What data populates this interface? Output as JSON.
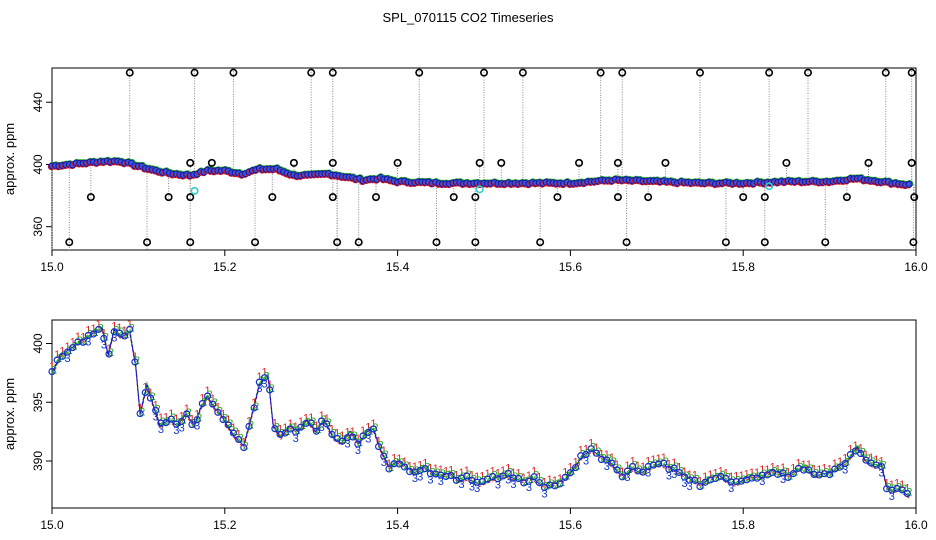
{
  "title": "SPL_070115  CO2 Timeseries",
  "chart_data": [
    {
      "type": "scatter",
      "ylabel": "approx. ppm",
      "xlim": [
        15.0,
        16.0
      ],
      "ylim": [
        345,
        462
      ],
      "xticks": [
        "15.0",
        "15.2",
        "15.4",
        "15.6",
        "15.8",
        "16.0"
      ],
      "xtick_values": [
        15.0,
        15.2,
        15.4,
        15.6,
        15.8,
        16.0
      ],
      "yticks": [
        "360",
        "400",
        "440"
      ],
      "ytick_values": [
        360,
        400,
        440
      ],
      "baseline": [
        [
          15.0,
          399
        ],
        [
          15.02,
          400
        ],
        [
          15.04,
          401
        ],
        [
          15.06,
          402
        ],
        [
          15.08,
          402
        ],
        [
          15.1,
          399
        ],
        [
          15.12,
          396
        ],
        [
          15.14,
          394
        ],
        [
          15.16,
          393
        ],
        [
          15.18,
          396
        ],
        [
          15.2,
          396
        ],
        [
          15.22,
          394
        ],
        [
          15.24,
          397
        ],
        [
          15.26,
          397
        ],
        [
          15.28,
          393
        ],
        [
          15.3,
          393
        ],
        [
          15.32,
          394
        ],
        [
          15.34,
          392
        ],
        [
          15.36,
          390
        ],
        [
          15.38,
          391
        ],
        [
          15.4,
          389
        ],
        [
          15.45,
          388
        ],
        [
          15.5,
          388
        ],
        [
          15.55,
          388
        ],
        [
          15.6,
          388
        ],
        [
          15.65,
          390
        ],
        [
          15.7,
          389
        ],
        [
          15.75,
          388
        ],
        [
          15.8,
          388
        ],
        [
          15.85,
          389
        ],
        [
          15.9,
          389
        ],
        [
          15.93,
          391
        ],
        [
          15.96,
          389
        ],
        [
          15.99,
          387
        ]
      ],
      "outliers_high": [
        15.09,
        15.165,
        15.21,
        15.3,
        15.325,
        15.425,
        15.5,
        15.545,
        15.635,
        15.66,
        15.75,
        15.83,
        15.875,
        15.965,
        15.995
      ],
      "outliers_low": [
        15.02,
        15.11,
        15.16,
        15.235,
        15.33,
        15.355,
        15.445,
        15.49,
        15.565,
        15.665,
        15.78,
        15.825,
        15.895,
        15.997
      ],
      "outliers_mid_high": [
        15.16,
        15.185,
        15.28,
        15.325,
        15.4,
        15.495,
        15.52,
        15.61,
        15.655,
        15.71,
        15.85,
        15.945,
        15.995
      ],
      "outliers_mid_low": [
        15.045,
        15.135,
        15.16,
        15.255,
        15.325,
        15.375,
        15.465,
        15.49,
        15.585,
        15.655,
        15.69,
        15.8,
        15.825,
        15.92,
        15.998
      ],
      "highlight_points": [
        [
          15.165,
          383
        ],
        [
          15.495,
          384
        ],
        [
          15.83,
          386
        ]
      ]
    },
    {
      "type": "line",
      "ylabel": "approx. ppm",
      "xlim": [
        15.0,
        16.0
      ],
      "ylim": [
        386,
        402
      ],
      "xticks": [
        "15.0",
        "15.2",
        "15.4",
        "15.6",
        "15.8",
        "16.0"
      ],
      "xtick_values": [
        15.0,
        15.2,
        15.4,
        15.6,
        15.8,
        16.0
      ],
      "yticks": [
        "390",
        "395",
        "400"
      ],
      "ytick_values": [
        390,
        395,
        400
      ],
      "series": [
        {
          "values": [
            [
              15.0,
              397.5
            ],
            [
              15.01,
              399.0
            ],
            [
              15.02,
              399.5
            ],
            [
              15.03,
              400.0
            ],
            [
              15.04,
              400.5
            ],
            [
              15.05,
              401.0
            ],
            [
              15.058,
              401.3
            ],
            [
              15.065,
              399.0
            ],
            [
              15.072,
              401.2
            ],
            [
              15.08,
              400.5
            ],
            [
              15.09,
              401.0
            ],
            [
              15.097,
              398.0
            ],
            [
              15.102,
              394.0
            ],
            [
              15.11,
              396.5
            ],
            [
              15.118,
              394.5
            ],
            [
              15.125,
              393.0
            ],
            [
              15.135,
              393.5
            ],
            [
              15.145,
              393.0
            ],
            [
              15.155,
              394.0
            ],
            [
              15.165,
              393.0
            ],
            [
              15.172,
              394.5
            ],
            [
              15.18,
              395.5
            ],
            [
              15.188,
              394.5
            ],
            [
              15.195,
              394.0
            ],
            [
              15.203,
              393.0
            ],
            [
              15.212,
              392.0
            ],
            [
              15.222,
              391.3
            ],
            [
              15.23,
              393.5
            ],
            [
              15.24,
              396.5
            ],
            [
              15.25,
              397.3
            ],
            [
              15.256,
              393.0
            ],
            [
              15.265,
              392.0
            ],
            [
              15.275,
              393.0
            ],
            [
              15.285,
              392.5
            ],
            [
              15.295,
              393.5
            ],
            [
              15.305,
              392.5
            ],
            [
              15.315,
              393.5
            ],
            [
              15.325,
              392.0
            ],
            [
              15.335,
              391.5
            ],
            [
              15.345,
              392.5
            ],
            [
              15.355,
              391.5
            ],
            [
              15.365,
              392.5
            ],
            [
              15.372,
              392.7
            ],
            [
              15.38,
              391.0
            ],
            [
              15.39,
              389.5
            ],
            [
              15.4,
              390.0
            ],
            [
              15.41,
              389.5
            ],
            [
              15.42,
              389.0
            ],
            [
              15.43,
              389.5
            ],
            [
              15.44,
              389.0
            ],
            [
              15.45,
              388.7
            ],
            [
              15.46,
              389.0
            ],
            [
              15.47,
              388.3
            ],
            [
              15.48,
              388.5
            ],
            [
              15.495,
              388.0
            ],
            [
              15.505,
              388.3
            ],
            [
              15.515,
              388.6
            ],
            [
              15.525,
              388.8
            ],
            [
              15.535,
              388.5
            ],
            [
              15.545,
              388.3
            ],
            [
              15.555,
              388.6
            ],
            [
              15.565,
              388.0
            ],
            [
              15.575,
              387.9
            ],
            [
              15.585,
              388.2
            ],
            [
              15.595,
              388.5
            ],
            [
              15.605,
              389.5
            ],
            [
              15.615,
              390.5
            ],
            [
              15.625,
              390.9
            ],
            [
              15.635,
              390.4
            ],
            [
              15.645,
              390.0
            ],
            [
              15.655,
              389.0
            ],
            [
              15.662,
              388.7
            ],
            [
              15.672,
              389.3
            ],
            [
              15.682,
              389.0
            ],
            [
              15.692,
              389.4
            ],
            [
              15.702,
              389.7
            ],
            [
              15.712,
              389.5
            ],
            [
              15.722,
              389.2
            ],
            [
              15.732,
              388.8
            ],
            [
              15.742,
              388.3
            ],
            [
              15.752,
              388.0
            ],
            [
              15.762,
              388.6
            ],
            [
              15.772,
              388.8
            ],
            [
              15.782,
              388.2
            ],
            [
              15.792,
              388.0
            ],
            [
              15.802,
              388.5
            ],
            [
              15.812,
              388.8
            ],
            [
              15.822,
              388.6
            ],
            [
              15.832,
              389.2
            ],
            [
              15.842,
              389.0
            ],
            [
              15.852,
              388.8
            ],
            [
              15.862,
              389.2
            ],
            [
              15.872,
              389.5
            ],
            [
              15.882,
              388.7
            ],
            [
              15.892,
              388.9
            ],
            [
              15.902,
              389.0
            ],
            [
              15.912,
              389.6
            ],
            [
              15.922,
              390.1
            ],
            [
              15.932,
              391.2
            ],
            [
              15.942,
              390.0
            ],
            [
              15.952,
              389.5
            ],
            [
              15.96,
              389.7
            ],
            [
              15.966,
              387.8
            ],
            [
              15.972,
              387.4
            ],
            [
              15.98,
              387.6
            ],
            [
              15.986,
              387.3
            ],
            [
              15.992,
              387.0
            ]
          ]
        }
      ]
    }
  ]
}
